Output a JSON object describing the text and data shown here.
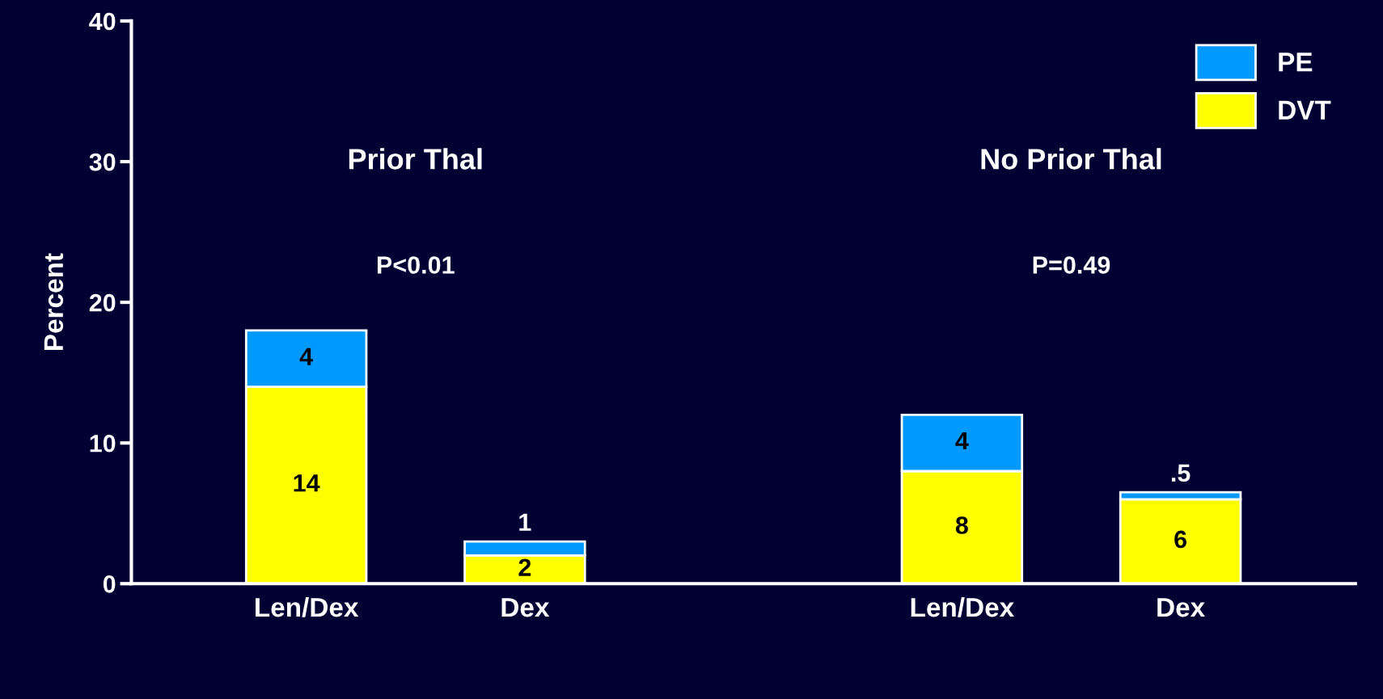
{
  "chart_data": {
    "type": "bar",
    "stacked": true,
    "ylabel": "Percent",
    "categories": [
      "Len/Dex",
      "Dex",
      null,
      "Len/Dex",
      "Dex"
    ],
    "series": [
      {
        "name": "DVT",
        "color": "#ffff00",
        "values": [
          14,
          2,
          null,
          8,
          6
        ],
        "value_labels": [
          "14",
          "2",
          null,
          "8",
          "6"
        ]
      },
      {
        "name": "PE",
        "color": "#0099ff",
        "values": [
          4,
          1,
          null,
          4,
          0.5
        ],
        "value_labels": [
          "4",
          "1",
          null,
          "4",
          ".5"
        ]
      }
    ],
    "annotations": [
      "Prior Thal",
      "No Prior Thal",
      "P<0.01",
      "P=0.49"
    ],
    "ylim": [
      0,
      40
    ],
    "yticks": [
      0,
      10,
      20,
      30,
      40
    ],
    "grid": false,
    "legend": "top right"
  }
}
